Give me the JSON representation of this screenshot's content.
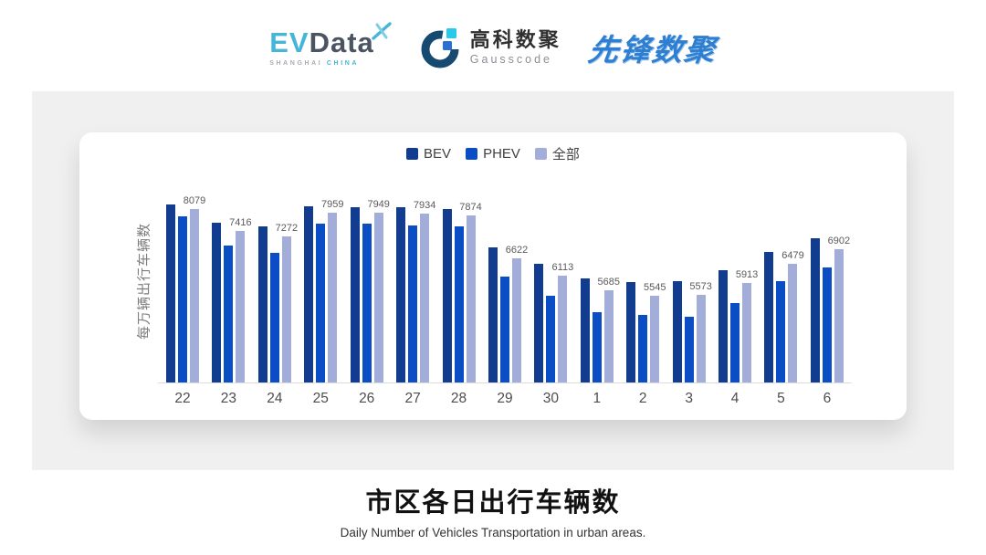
{
  "header": {
    "evdata": {
      "ev": "EV",
      "data": "Data",
      "sub_left": "SHANGHAI",
      "sub_right": "CHINA"
    },
    "gausscode": {
      "cn": "高科数聚",
      "en": "Gausscode"
    },
    "xianfeng": "先锋数聚"
  },
  "chart_data": {
    "type": "bar",
    "title": "市区各日出行车辆数",
    "subtitle": "Daily Number of Vehicles Transportation in urban areas.",
    "ylabel": "每万辆出行车辆数",
    "xlabel": "",
    "categories": [
      "22",
      "23",
      "24",
      "25",
      "26",
      "27",
      "28",
      "29",
      "30",
      "1",
      "2",
      "3",
      "4",
      "5",
      "6"
    ],
    "series": [
      {
        "name": "BEV",
        "key": "bev",
        "color": "#123c8f",
        "values": [
          8210,
          7670,
          7570,
          8150,
          8130,
          8130,
          8060,
          6940,
          6460,
          6050,
          5920,
          5970,
          6280,
          6800,
          7220
        ]
      },
      {
        "name": "PHEV",
        "key": "phev",
        "color": "#0b4dc4",
        "values": [
          7840,
          7000,
          6780,
          7640,
          7640,
          7590,
          7570,
          6100,
          5540,
          5060,
          4960,
          4930,
          5330,
          5950,
          6370
        ]
      },
      {
        "name": "全部",
        "key": "all",
        "color": "#a3add9",
        "values": [
          8079,
          7416,
          7272,
          7959,
          7949,
          7934,
          7874,
          6622,
          6113,
          5685,
          5545,
          5573,
          5913,
          6479,
          6902
        ]
      }
    ],
    "value_labels": [
      8079,
      7416,
      7272,
      7959,
      7949,
      7934,
      7874,
      6622,
      6113,
      5685,
      5545,
      5573,
      5913,
      6479,
      6902
    ],
    "value_labels_series": "全部",
    "ylim": [
      3000,
      9000
    ],
    "grid": false,
    "legend_position": "top"
  },
  "colors": {
    "panel_bg": "#f0f0f1",
    "card_bg": "#ffffff",
    "axis_line": "#dcdcdc",
    "evdata_blue": "#45b5d8",
    "evdata_dark": "#4a5462",
    "gauss_navy": "#174a70",
    "gauss_cyan": "#29c9e9",
    "xianfeng_blue": "#2e7fd2"
  }
}
